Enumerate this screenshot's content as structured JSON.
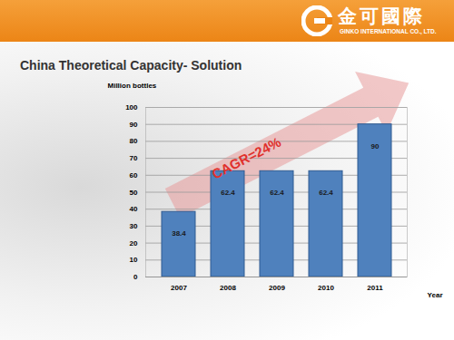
{
  "header": {
    "company_zh": "金可國際",
    "company_en": "GINKO INTERNATIONAL CO., LTD."
  },
  "chart_data": {
    "type": "bar",
    "title": "China Theoretical Capacity- Solution",
    "y_label": "Million bottles",
    "x_label": "Year",
    "categories": [
      "2007",
      "2008",
      "2009",
      "2010",
      "2011"
    ],
    "values": [
      38.4,
      62.4,
      62.4,
      62.4,
      90
    ],
    "color": "#4f81bd",
    "ylim": [
      0,
      100
    ],
    "yticks": [
      0,
      10,
      20,
      30,
      40,
      50,
      60,
      70,
      80,
      90,
      100
    ],
    "grid": true,
    "data_labels": true,
    "annotations": [
      "CAGR=24%"
    ]
  }
}
